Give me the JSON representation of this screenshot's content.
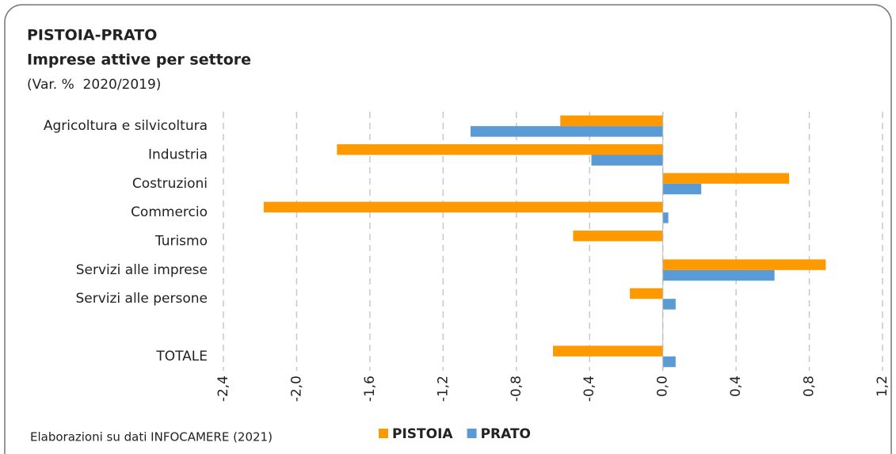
{
  "chart_data": {
    "type": "barh",
    "title": "PISTOIA-PRATO",
    "subtitle": "Imprese attive per settore",
    "unit_note": "(Var. %  2020/2019)",
    "source": "Elaborazioni su dati INFOCAMERE (2021)",
    "categories": [
      "Agricoltura e silvicoltura",
      "Industria",
      "Costruzioni",
      "Commercio",
      "Turismo",
      "Servizi alle imprese",
      "Servizi alle persone",
      null,
      "TOTALE"
    ],
    "series": [
      {
        "name": "PISTOIA",
        "color": "#ff9900",
        "values": [
          -0.56,
          -1.78,
          0.69,
          -2.18,
          -0.49,
          0.89,
          -0.18,
          null,
          -0.6
        ]
      },
      {
        "name": "PRATO",
        "color": "#5b9bd5",
        "values": [
          -1.05,
          -0.39,
          0.21,
          0.03,
          0,
          0.61,
          0.07,
          null,
          0.07
        ]
      }
    ],
    "xlim": [
      -2.4,
      1.2
    ],
    "xticks": [
      {
        "value": -2.4,
        "label": "-2,4"
      },
      {
        "value": -2.0,
        "label": "-2,0"
      },
      {
        "value": -1.6,
        "label": "-1,6"
      },
      {
        "value": -1.2,
        "label": "-1,2"
      },
      {
        "value": -0.8,
        "label": "-0,8"
      },
      {
        "value": -0.4,
        "label": "-0,4"
      },
      {
        "value": 0,
        "label": "0,0"
      },
      {
        "value": 0.4,
        "label": "0,4"
      },
      {
        "value": 0.8,
        "label": "0,8"
      },
      {
        "value": 1.2,
        "label": "1,2"
      }
    ],
    "grid": true,
    "legend": "bottom"
  }
}
